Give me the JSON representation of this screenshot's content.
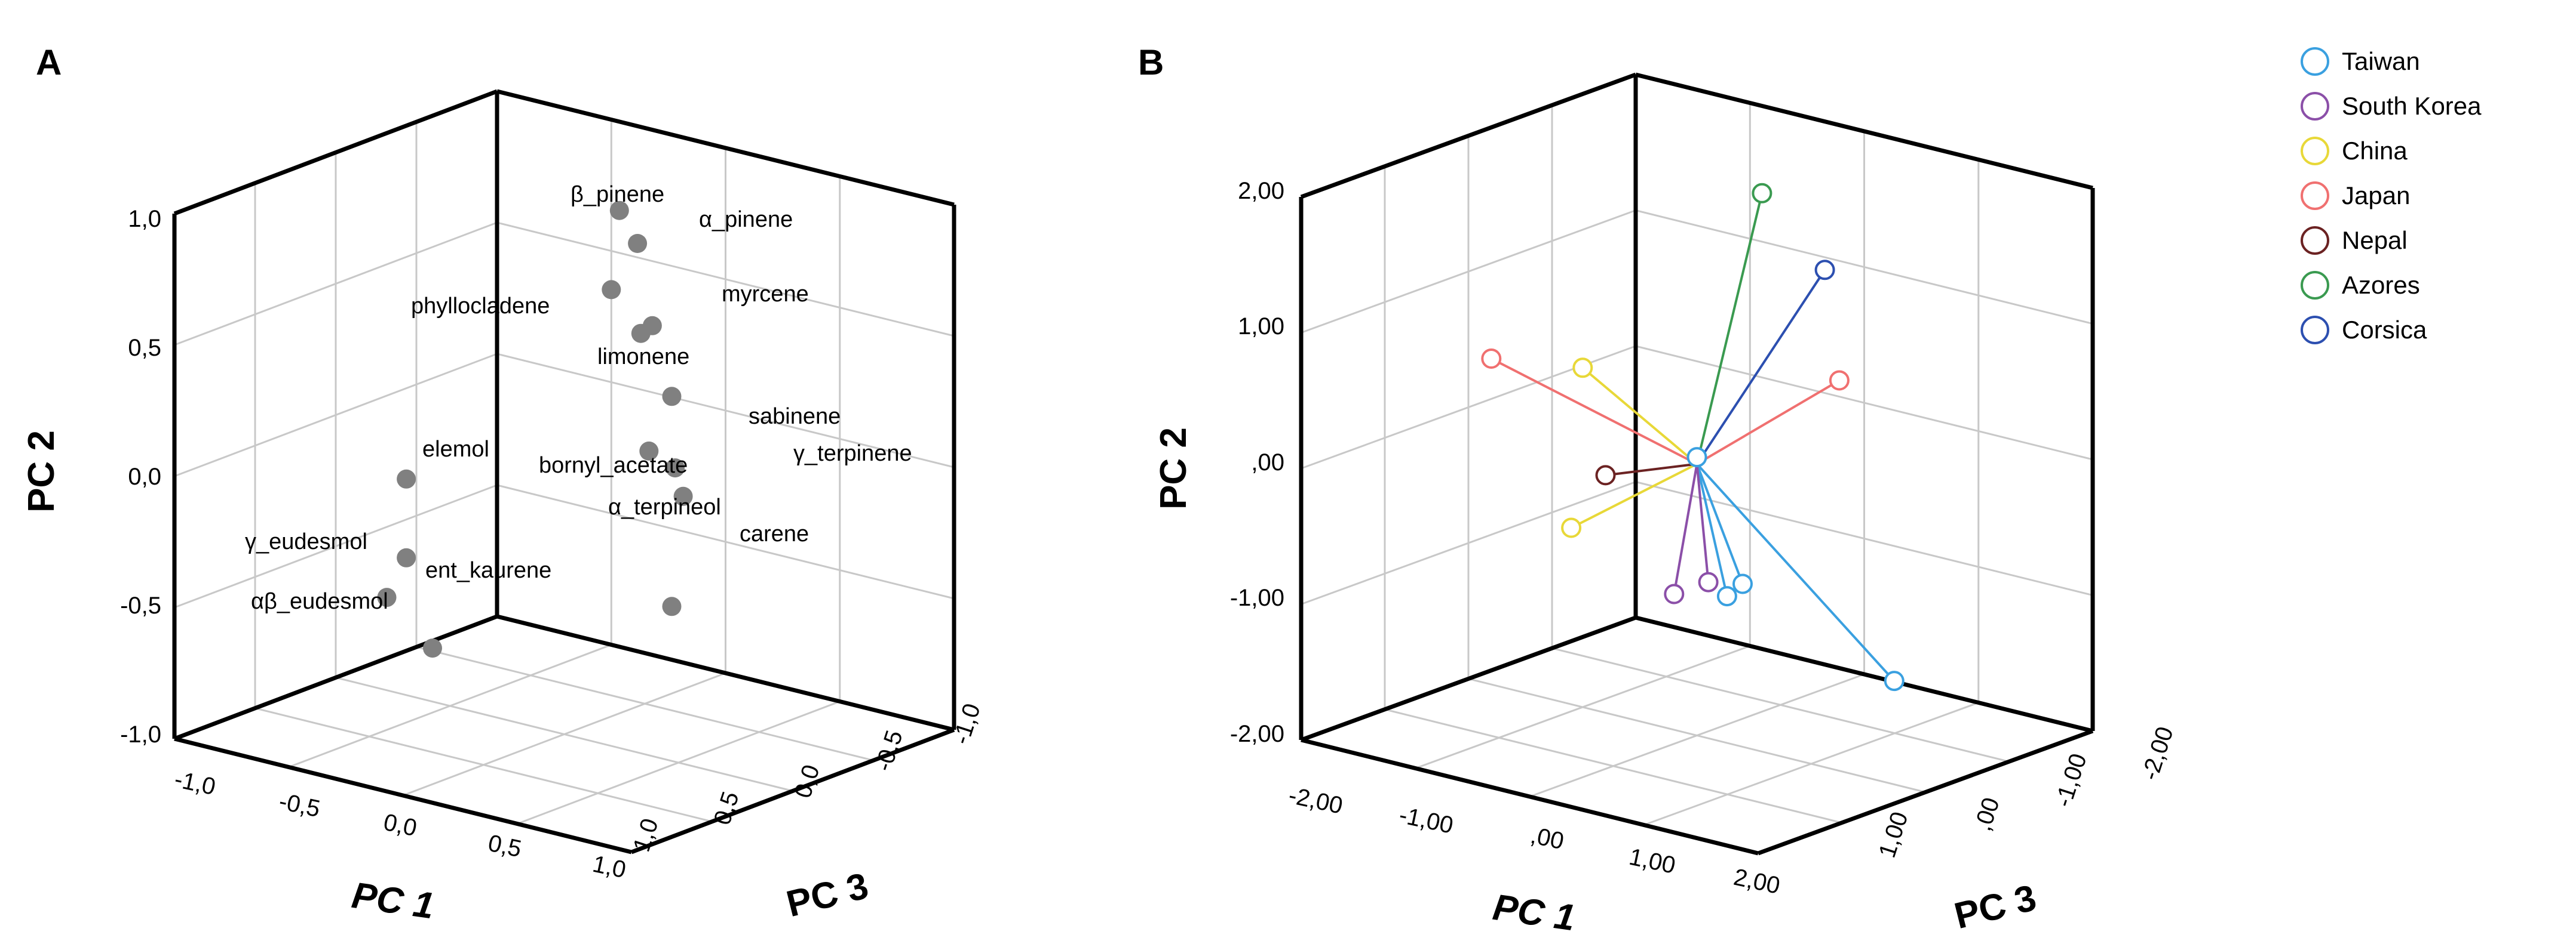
{
  "chart_data": [
    {
      "type": "scatter",
      "panel_label": "A",
      "title": "",
      "xlabel": "PC 1",
      "ylabel": "PC 2",
      "zlabel": "PC 3",
      "xlim": [
        -1.0,
        1.0
      ],
      "ylim": [
        -1.0,
        1.0
      ],
      "zlim": [
        -1.0,
        1.0
      ],
      "x_ticks": [
        "-1,0",
        "-0,5",
        "0,0",
        "0,5",
        "1,0"
      ],
      "y_ticks": [
        "-1,0",
        "-0,5",
        "0,0",
        "0,5",
        "1,0"
      ],
      "z_ticks": [
        "1,0",
        "0,5",
        "0,0",
        "-0,5",
        "-1,0"
      ],
      "grid": true,
      "marker_color": "#808080",
      "points": [
        {
          "label": "β_pinene",
          "pc1": 0.1,
          "pc2": 0.97,
          "pc3": -0.2
        },
        {
          "label": "α_pinene",
          "pc1": 0.25,
          "pc2": 0.9,
          "pc3": -0.1
        },
        {
          "label": "phyllocladene",
          "pc1": 0.1,
          "pc2": 0.68,
          "pc3": -0.15
        },
        {
          "label": "myrcene",
          "pc1": 0.35,
          "pc2": 0.62,
          "pc3": -0.05
        },
        {
          "label": "limonene",
          "pc1": 0.3,
          "pc2": 0.58,
          "pc3": -0.05
        },
        {
          "label": "sabinene",
          "pc1": 0.4,
          "pc2": 0.35,
          "pc3": -0.1
        },
        {
          "label": "bornyl_acetate",
          "pc1": 0.3,
          "pc2": 0.12,
          "pc3": -0.1
        },
        {
          "label": "γ_terpinene",
          "pc1": 0.45,
          "pc2": 0.1,
          "pc3": -0.05
        },
        {
          "label": "α_terpineol",
          "pc1": 0.45,
          "pc2": -0.02,
          "pc3": -0.1
        },
        {
          "label": "carene",
          "pc1": 0.4,
          "pc2": -0.45,
          "pc3": -0.1
        },
        {
          "label": "elemol",
          "pc1": -0.55,
          "pc2": -0.1,
          "pc3": 0.2
        },
        {
          "label": "γ_eudesmol",
          "pc1": -0.55,
          "pc2": -0.4,
          "pc3": 0.2
        },
        {
          "label": "ent_kaurene",
          "pc1": -0.6,
          "pc2": -0.55,
          "pc3": 0.25
        },
        {
          "label": "αβ_eudesmol",
          "pc1": -0.4,
          "pc2": -0.7,
          "pc3": 0.25
        }
      ]
    },
    {
      "type": "scatter",
      "panel_label": "B",
      "title": "",
      "xlabel": "PC 1",
      "ylabel": "PC 2",
      "zlabel": "PC 3",
      "xlim": [
        -2.0,
        2.0
      ],
      "ylim": [
        -2.0,
        2.0
      ],
      "zlim": [
        -2.0,
        2.0
      ],
      "x_ticks": [
        "-2,00",
        "-1,00",
        ",00",
        "1,00",
        "2,00"
      ],
      "y_ticks": [
        "-2,00",
        "-1,00",
        ",00",
        "1,00",
        "2,00"
      ],
      "z_ticks": [
        "1,00",
        ",00",
        "-1,00",
        "-2,00"
      ],
      "grid": true,
      "centroid": {
        "pc1": 0.0,
        "pc2": 0.0,
        "pc3": 0.0
      },
      "legend_position": "top-right",
      "series": [
        {
          "name": "Taiwan",
          "color": "#3aa0e0",
          "points": [
            {
              "pc1": 1.8,
              "pc2": -1.2,
              "pc3": 0.1
            },
            {
              "pc1": 0.4,
              "pc2": -0.8,
              "pc3": 0.0
            },
            {
              "pc1": 0.3,
              "pc2": -0.9,
              "pc3": 0.05
            },
            {
              "pc1": 0.0,
              "pc2": 0.05,
              "pc3": 0.0
            }
          ]
        },
        {
          "name": "South Korea",
          "color": "#8b4fa8",
          "points": [
            {
              "pc1": -0.2,
              "pc2": -1.0,
              "pc3": 0.0
            },
            {
              "pc1": 0.1,
              "pc2": -0.85,
              "pc3": 0.0
            }
          ]
        },
        {
          "name": "China",
          "color": "#e8d838",
          "points": [
            {
              "pc1": -1.0,
              "pc2": 0.5,
              "pc3": 0.0
            },
            {
              "pc1": -1.1,
              "pc2": -0.7,
              "pc3": 0.0
            }
          ]
        },
        {
          "name": "Japan",
          "color": "#f07070",
          "points": [
            {
              "pc1": -1.8,
              "pc2": 0.4,
              "pc3": 0.0
            },
            {
              "pc1": 1.1,
              "pc2": 0.8,
              "pc3": -0.2
            }
          ]
        },
        {
          "name": "Nepal",
          "color": "#6b2222",
          "points": [
            {
              "pc1": -0.8,
              "pc2": -0.25,
              "pc3": 0.0
            }
          ]
        },
        {
          "name": "Azores",
          "color": "#3a9a50",
          "points": [
            {
              "pc1": 0.35,
              "pc2": 2.0,
              "pc3": -0.3
            }
          ]
        },
        {
          "name": "Corsica",
          "color": "#2c4fb0",
          "points": [
            {
              "pc1": 0.9,
              "pc2": 1.55,
              "pc3": -0.3
            }
          ]
        }
      ]
    }
  ]
}
